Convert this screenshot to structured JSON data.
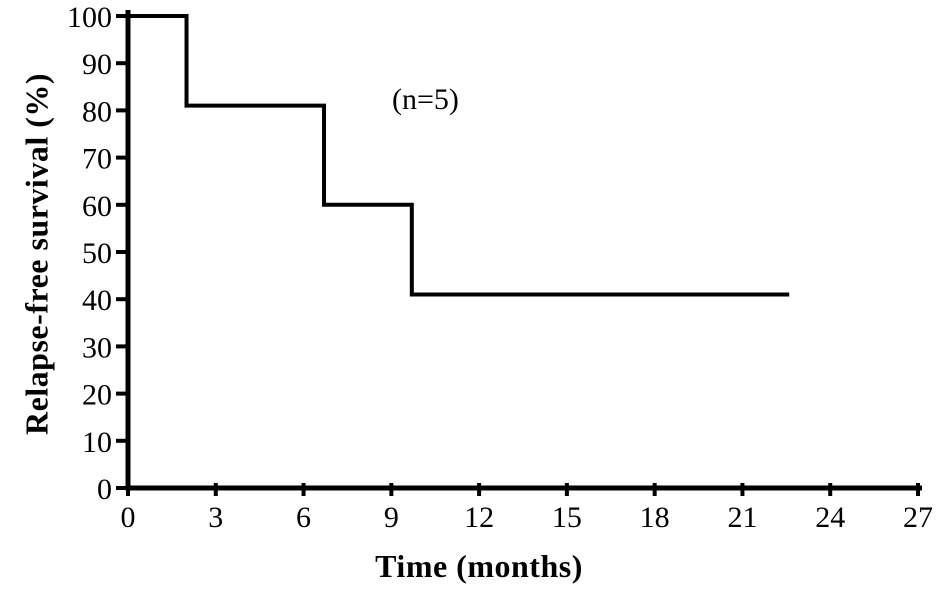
{
  "figure": {
    "background_color": "#ffffff",
    "text_color": "#000000"
  },
  "chart_data": {
    "type": "line",
    "subtype": "step-survival-curve",
    "title": "",
    "xlabel": "Time (months)",
    "ylabel": "Relapse-free survival (%)",
    "annotation": "(n=5)",
    "xlim": [
      0,
      27
    ],
    "ylim": [
      0,
      100
    ],
    "x_ticks": [
      0,
      3,
      6,
      9,
      12,
      15,
      18,
      21,
      24,
      27
    ],
    "y_ticks": [
      0,
      10,
      20,
      30,
      40,
      50,
      60,
      70,
      80,
      90,
      100
    ],
    "grid": false,
    "legend": null,
    "line_color": "#000000",
    "series": [
      {
        "name": "Relapse-free survival",
        "step_points": [
          [
            0,
            100
          ],
          [
            2,
            100
          ],
          [
            2,
            81
          ],
          [
            6.7,
            81
          ],
          [
            6.7,
            60
          ],
          [
            9.7,
            60
          ],
          [
            9.7,
            41
          ],
          [
            22.6,
            41
          ]
        ]
      }
    ]
  }
}
